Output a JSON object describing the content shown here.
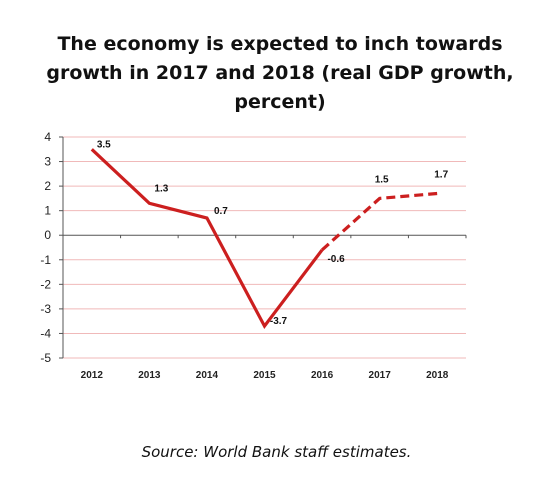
{
  "title_lines": [
    "The economy is expected to inch towards",
    "growth in 2017 and 2018 (real GDP growth,",
    "percent)"
  ],
  "source": "Source: World Bank staff estimates.",
  "chart_data": {
    "type": "line",
    "title": "The economy is expected to inch towards growth in 2017 and 2018 (real GDP growth, percent)",
    "xlabel": "",
    "ylabel": "",
    "categories": [
      "2012",
      "2013",
      "2014",
      "2015",
      "2016",
      "2017",
      "2018"
    ],
    "series": [
      {
        "values": [
          3.5,
          1.3,
          0.7,
          -3.7,
          -0.6,
          1.5,
          1.7
        ],
        "data_labels": [
          "3.5",
          "1.3",
          "0.7",
          "-3.7",
          "-0.6",
          "1.5",
          "1.7"
        ],
        "color": "#cc1f1f",
        "solid_through_index": 4,
        "dashed_from_index": 4
      }
    ],
    "ylim": [
      -5,
      4
    ],
    "yticks": [
      "4",
      "3",
      "2",
      "1",
      "0",
      "-1",
      "-2",
      "-3",
      "-4",
      "-5"
    ],
    "grid": true,
    "legend": "none"
  }
}
